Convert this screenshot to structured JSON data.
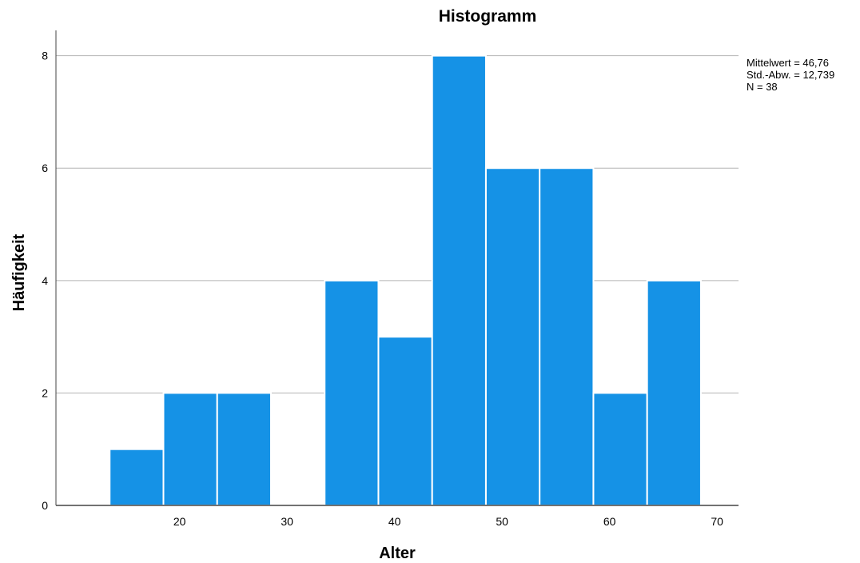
{
  "chart_data": {
    "type": "bar",
    "title": "Histogramm",
    "xlabel": "Alter",
    "ylabel": "Häufigkeit",
    "bins": [
      {
        "start": 13.5,
        "end": 18.5,
        "count": 1
      },
      {
        "start": 18.5,
        "end": 23.5,
        "count": 2
      },
      {
        "start": 23.5,
        "end": 28.5,
        "count": 2
      },
      {
        "start": 28.5,
        "end": 33.5,
        "count": 0
      },
      {
        "start": 33.5,
        "end": 38.5,
        "count": 4
      },
      {
        "start": 38.5,
        "end": 43.5,
        "count": 3
      },
      {
        "start": 43.5,
        "end": 48.5,
        "count": 8
      },
      {
        "start": 48.5,
        "end": 53.5,
        "count": 6
      },
      {
        "start": 53.5,
        "end": 58.5,
        "count": 6
      },
      {
        "start": 58.5,
        "end": 63.5,
        "count": 2
      },
      {
        "start": 63.5,
        "end": 68.5,
        "count": 4
      }
    ],
    "xlim": [
      8.5,
      72
    ],
    "ylim": [
      0,
      8.45
    ],
    "xticks": [
      20,
      30,
      40,
      50,
      60,
      70
    ],
    "yticks": [
      0,
      2,
      4,
      6,
      8
    ],
    "grid": "horizontal",
    "bar_color": "#1592e6",
    "stats": {
      "mean": "Mittelwert = 46,76",
      "std": "Std.-Abw. = 12,739",
      "n": "N = 38"
    }
  }
}
